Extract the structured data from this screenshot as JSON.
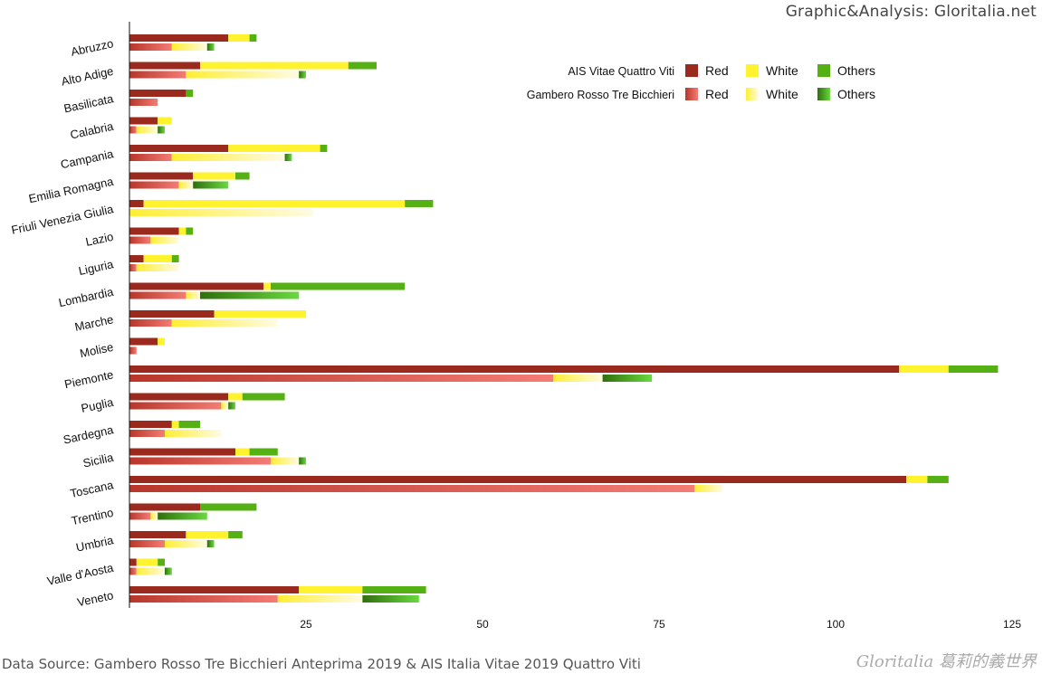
{
  "header": {
    "credit": "Graphic&Analysis: Gloritalia.net"
  },
  "footer": {
    "source": "Data Source: Gambero Rosso Tre Bicchieri Anteprima 2019 & AIS Italia Vitae 2019 Quattro Viti",
    "brand": "Gloritalia 葛莉的義世界"
  },
  "colors": {
    "ais_red": "#9b2a1e",
    "ais_white": "#fff22e",
    "ais_others": "#55b013",
    "gr_red_from": "#b8362a",
    "gr_red_to": "#f47c74",
    "gr_white_from": "#ffee33",
    "gr_white_to": "#fffbe4",
    "gr_others_from": "#2f6f0c",
    "gr_others_to": "#6ad93f"
  },
  "chart_data": {
    "type": "bar",
    "orientation": "horizontal",
    "stacked": true,
    "grid": false,
    "legend_position": "top-right",
    "xlim": [
      0,
      125
    ],
    "x_ticks": [
      25,
      50,
      75,
      100,
      125
    ],
    "categories": [
      "Abruzzo",
      "Alto Adige",
      "Basilicata",
      "Calabria",
      "Campania",
      "Emilia Romagna",
      "Friuli Venezia Giulia",
      "Lazio",
      "Liguria",
      "Lombardia",
      "Marche",
      "Molise",
      "Piemonte",
      "Puglia",
      "Sardegna",
      "Sicilia",
      "Toscana",
      "Trentino",
      "Umbria",
      "Valle d'Aosta",
      "Veneto"
    ],
    "groups": [
      {
        "name": "AIS Vitae Quattro Viti",
        "series": [
          {
            "name": "Red",
            "values": [
              14,
              10,
              8,
              4,
              14,
              9,
              2,
              7,
              2,
              19,
              12,
              4,
              109,
              14,
              6,
              15,
              110,
              10,
              8,
              1,
              24
            ]
          },
          {
            "name": "White",
            "values": [
              3,
              21,
              0,
              2,
              13,
              6,
              37,
              1,
              4,
              1,
              13,
              1,
              7,
              2,
              1,
              2,
              3,
              0,
              6,
              3,
              9
            ]
          },
          {
            "name": "Others",
            "values": [
              1,
              4,
              1,
              0,
              1,
              2,
              4,
              1,
              1,
              19,
              0,
              0,
              7,
              6,
              3,
              4,
              3,
              8,
              2,
              1,
              9
            ]
          }
        ]
      },
      {
        "name": "Gambero Rosso Tre Bicchieri",
        "series": [
          {
            "name": "Red",
            "values": [
              6,
              8,
              4,
              1,
              6,
              7,
              0,
              3,
              1,
              8,
              6,
              1,
              60,
              13,
              5,
              20,
              80,
              3,
              5,
              1,
              21
            ]
          },
          {
            "name": "White",
            "values": [
              5,
              16,
              0,
              3,
              16,
              2,
              26,
              4,
              6,
              2,
              15,
              0,
              7,
              1,
              8,
              4,
              4,
              1,
              6,
              4,
              12
            ]
          },
          {
            "name": "Others",
            "values": [
              1,
              1,
              0,
              1,
              1,
              5,
              0,
              0,
              0,
              14,
              0,
              0,
              7,
              1,
              0,
              1,
              0,
              7,
              1,
              1,
              8
            ]
          }
        ]
      }
    ]
  }
}
